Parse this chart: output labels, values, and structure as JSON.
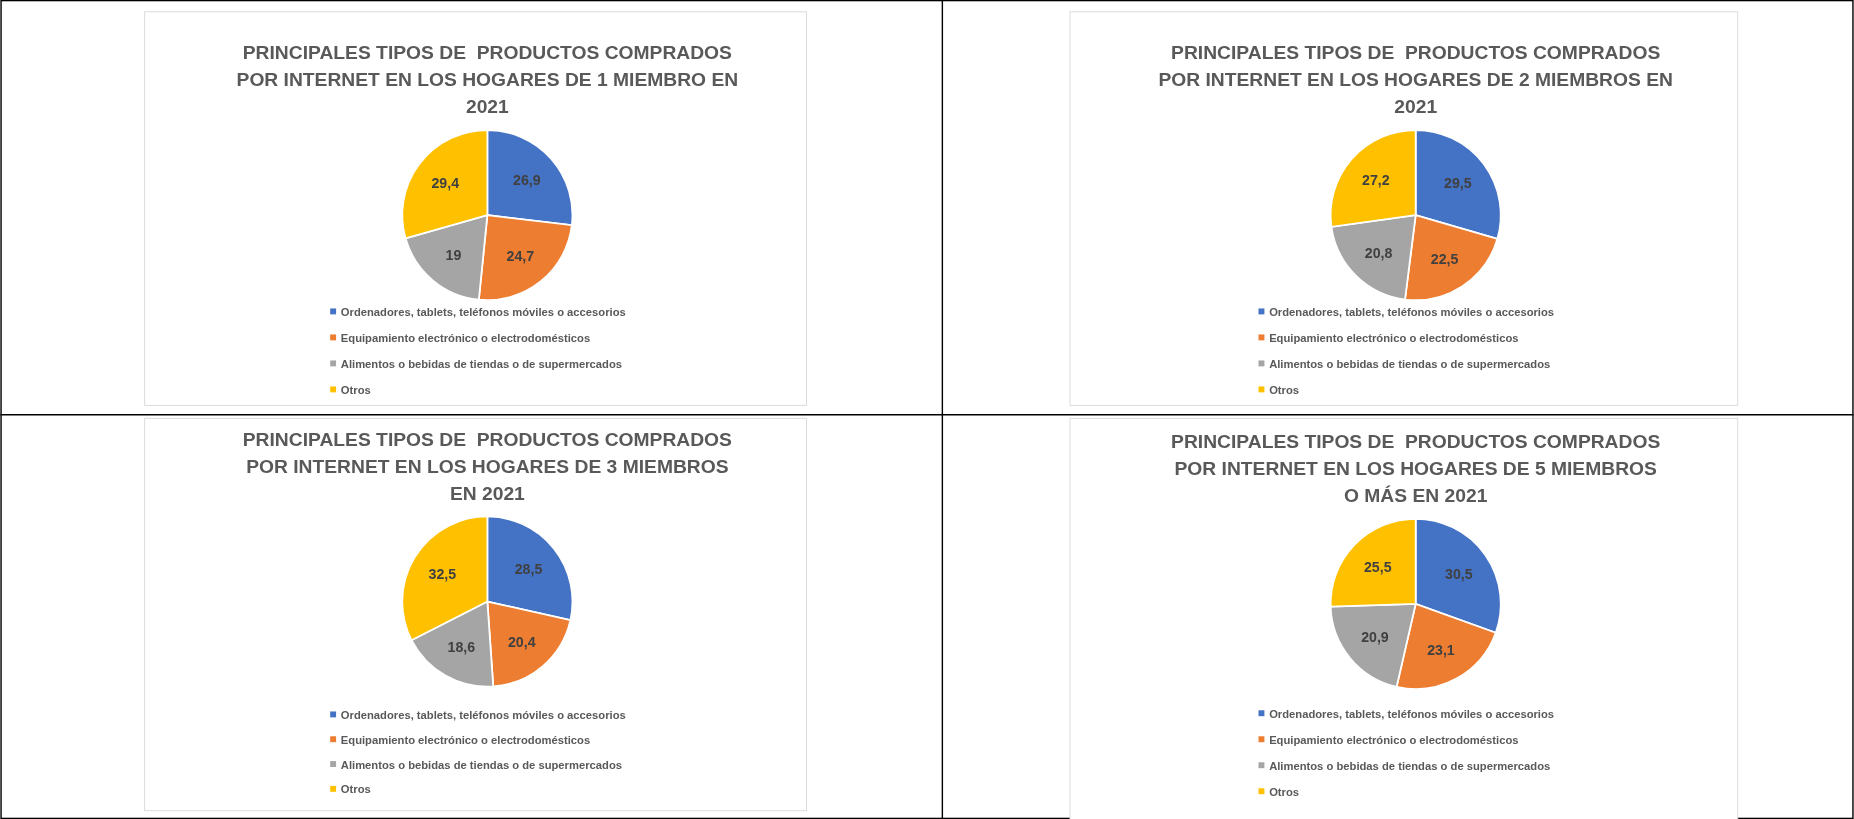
{
  "chart_data": [
    {
      "type": "pie",
      "title": "PRINCIPALES TIPOS DE  PRODUCTOS COMPRADOS POR INTERNET EN LOS HOGARES DE 1 MIEMBRO EN 2021",
      "categories": [
        "Ordenadores, tablets, teléfonos móviles o accesorios",
        "Equipamiento electrónico o electrodomésticos",
        "Alimentos o bebidas de tiendas o de supermercados",
        "Otros"
      ],
      "values": [
        26.9,
        24.7,
        19,
        29.4
      ],
      "value_labels": [
        "26,9",
        "24,7",
        "19",
        "29,4"
      ],
      "colors": [
        "#4472c4",
        "#ed7d31",
        "#a5a5a5",
        "#ffc000"
      ],
      "legend": "bottom"
    },
    {
      "type": "pie",
      "title": "PRINCIPALES TIPOS DE  PRODUCTOS COMPRADOS POR INTERNET EN LOS HOGARES DE 2 MIEMBROS EN 2021",
      "categories": [
        "Ordenadores, tablets, teléfonos móviles o accesorios",
        "Equipamiento electrónico o electrodomésticos",
        "Alimentos o bebidas de tiendas o de supermercados",
        "Otros"
      ],
      "values": [
        29.5,
        22.5,
        20.8,
        27.2
      ],
      "value_labels": [
        "29,5",
        "22,5",
        "20,8",
        "27,2"
      ],
      "colors": [
        "#4472c4",
        "#ed7d31",
        "#a5a5a5",
        "#ffc000"
      ],
      "legend": "bottom"
    },
    {
      "type": "pie",
      "title": "PRINCIPALES TIPOS DE  PRODUCTOS COMPRADOS POR INTERNET EN LOS HOGARES DE 3 MIEMBROS EN 2021",
      "categories": [
        "Ordenadores, tablets, teléfonos móviles o accesorios",
        "Equipamiento electrónico o electrodomésticos",
        "Alimentos o bebidas de tiendas o de supermercados",
        "Otros"
      ],
      "values": [
        28.5,
        20.4,
        18.6,
        32.5
      ],
      "value_labels": [
        "28,5",
        "20,4",
        "18,6",
        "32,5"
      ],
      "colors": [
        "#4472c4",
        "#ed7d31",
        "#a5a5a5",
        "#ffc000"
      ],
      "legend": "bottom"
    },
    {
      "type": "pie",
      "title": "PRINCIPALES TIPOS DE  PRODUCTOS COMPRADOS POR INTERNET EN LOS HOGARES DE 5 MIEMBROS O MÁS EN 2021",
      "categories": [
        "Ordenadores, tablets, teléfonos móviles o accesorios",
        "Equipamiento electrónico o electrodomésticos",
        "Alimentos o bebidas de tiendas o de supermercados",
        "Otros"
      ],
      "values": [
        30.5,
        23.1,
        20.9,
        25.5
      ],
      "value_labels": [
        "30,5",
        "23,1",
        "20,9",
        "25,5"
      ],
      "colors": [
        "#4472c4",
        "#ed7d31",
        "#a5a5a5",
        "#ffc000"
      ],
      "legend": "bottom"
    }
  ]
}
